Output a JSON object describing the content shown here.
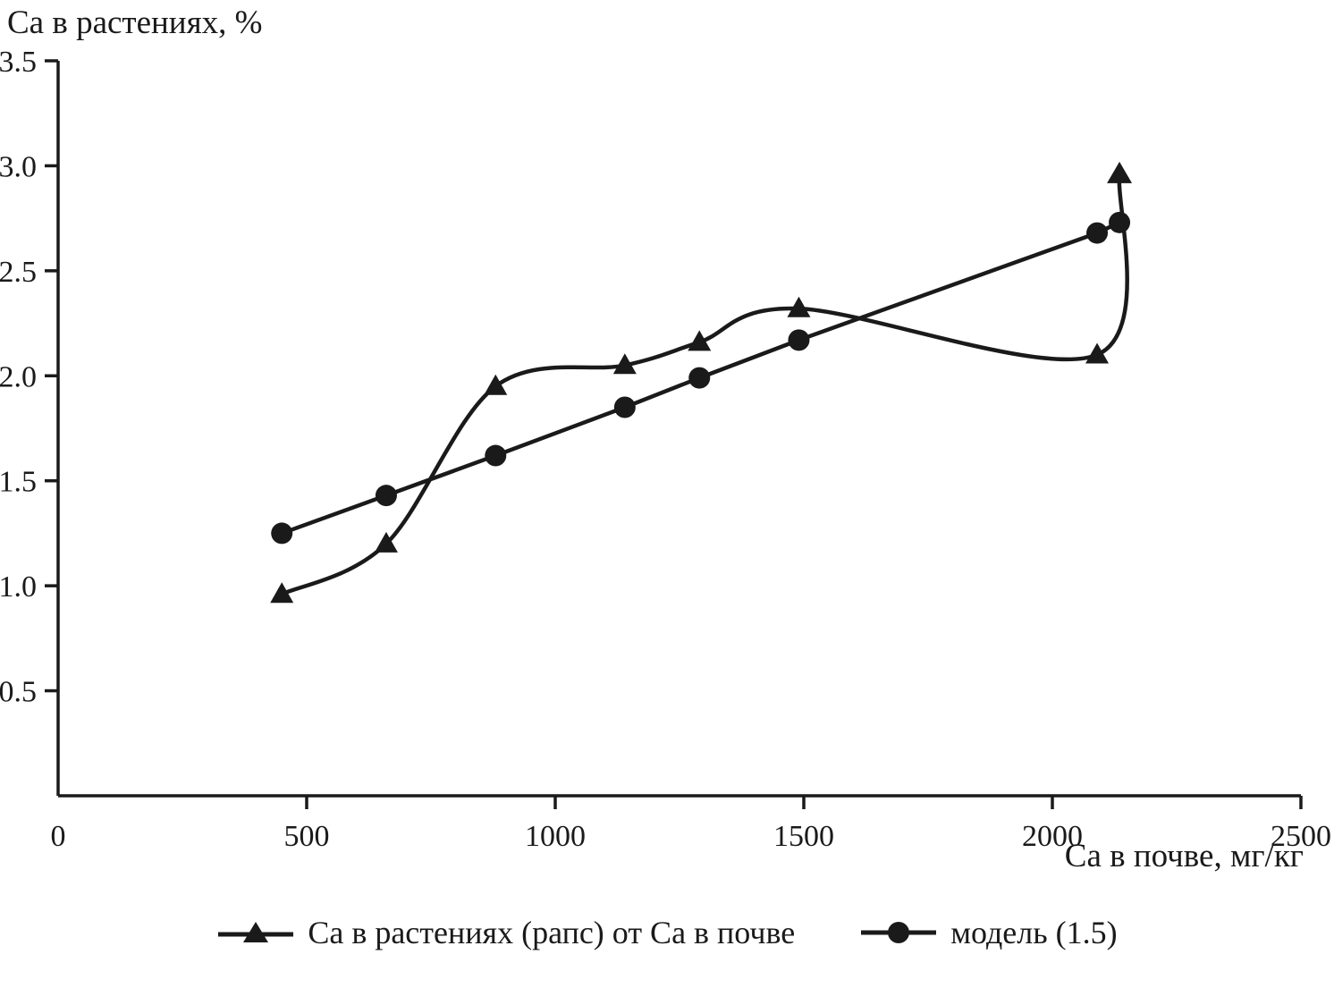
{
  "chart_data": {
    "type": "line",
    "title": "",
    "y_axis_title": "Са в растениях, %",
    "x_axis_label": "Са в почве, мг/кг",
    "xlim": [
      0,
      2500
    ],
    "ylim": [
      0,
      3.5
    ],
    "x_ticks": [
      0,
      500,
      1000,
      1500,
      2000,
      2500
    ],
    "x_tick_labels": [
      "0",
      "500",
      "1000",
      "1500",
      "2000",
      "2500"
    ],
    "y_ticks": [
      0.5,
      1.0,
      1.5,
      2.0,
      2.5,
      3.0,
      3.5
    ],
    "y_tick_labels": [
      "0.5",
      "1.0",
      "1.5",
      "2.0",
      "2.5",
      "3.0",
      "3.5"
    ],
    "grid": false,
    "legend_position": "bottom",
    "line_color": "#1a1a1a",
    "series": [
      {
        "name": "Са в растениях (рапс) от Са в почве",
        "marker": "triangle",
        "smooth": true,
        "end_arrow": true,
        "x": [
          450,
          660,
          880,
          1140,
          1290,
          1490,
          2090,
          2135
        ],
        "y": [
          0.96,
          1.2,
          1.95,
          2.05,
          2.16,
          2.32,
          2.1,
          2.96
        ]
      },
      {
        "name": "модель (1.5)",
        "marker": "circle",
        "smooth": false,
        "end_arrow": false,
        "x": [
          450,
          660,
          880,
          1140,
          1290,
          1490,
          2090,
          2135
        ],
        "y": [
          1.25,
          1.43,
          1.62,
          1.85,
          1.99,
          2.17,
          2.68,
          2.73
        ]
      }
    ]
  }
}
